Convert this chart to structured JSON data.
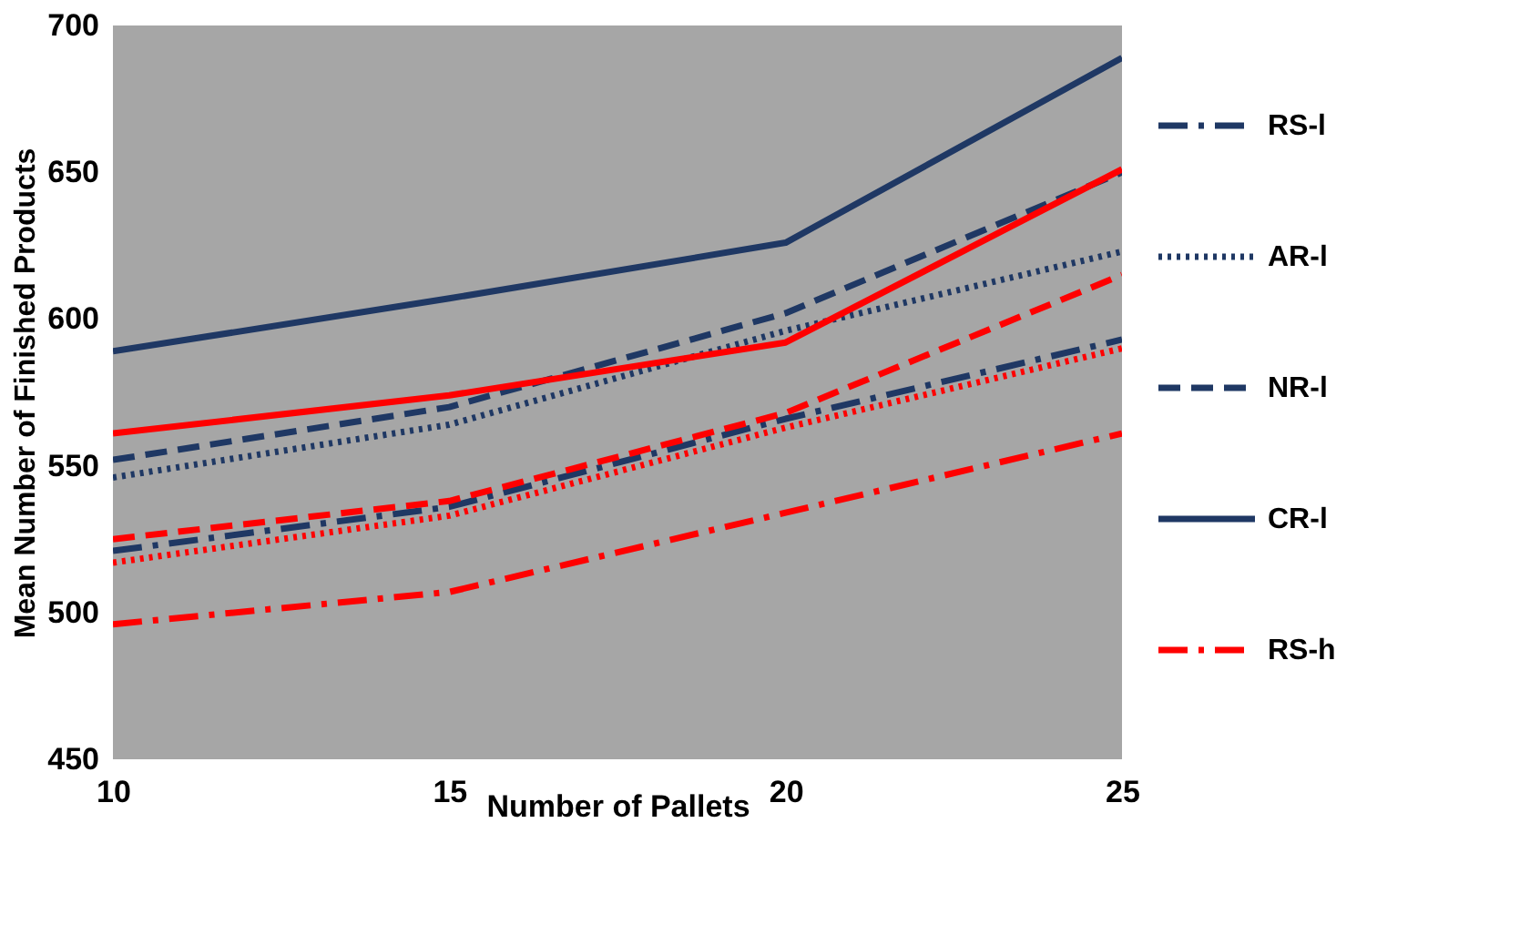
{
  "chart_data": {
    "type": "line",
    "xlabel": "Number of Pallets",
    "ylabel": "Mean Number of Finished Products",
    "x": [
      10,
      15,
      20,
      25
    ],
    "xlim": [
      10,
      25
    ],
    "xticks": [
      10,
      15,
      20,
      25
    ],
    "ylim": [
      450,
      700
    ],
    "yticks": [
      450,
      500,
      550,
      600,
      650,
      700
    ],
    "grid": false,
    "legend": "right",
    "marker": "none",
    "series": [
      {
        "name": "RS-l",
        "color": "#1f3864",
        "line_style": "dashdot",
        "values": [
          521,
          536,
          566,
          593
        ]
      },
      {
        "name": "AR-l",
        "color": "#1f3864",
        "line_style": "dotted",
        "values": [
          546,
          564,
          596,
          623
        ]
      },
      {
        "name": "NR-l",
        "color": "#1f3864",
        "line_style": "dashed",
        "values": [
          552,
          570,
          602,
          650
        ]
      },
      {
        "name": "CR-l",
        "color": "#1f3864",
        "line_style": "solid",
        "values": [
          589,
          607,
          626,
          689
        ]
      },
      {
        "name": "RS-h",
        "color": "#ff0000",
        "line_style": "dashdot",
        "values": [
          496,
          507,
          534,
          561
        ]
      },
      {
        "color": "#ff0000",
        "line_style": "dotted",
        "values": [
          517,
          533,
          563,
          590
        ]
      },
      {
        "color": "#ff0000",
        "line_style": "dashed",
        "values": [
          525,
          538,
          568,
          615
        ]
      },
      {
        "color": "#ff0000",
        "line_style": "solid",
        "values": [
          561,
          574,
          592,
          651
        ]
      }
    ]
  }
}
